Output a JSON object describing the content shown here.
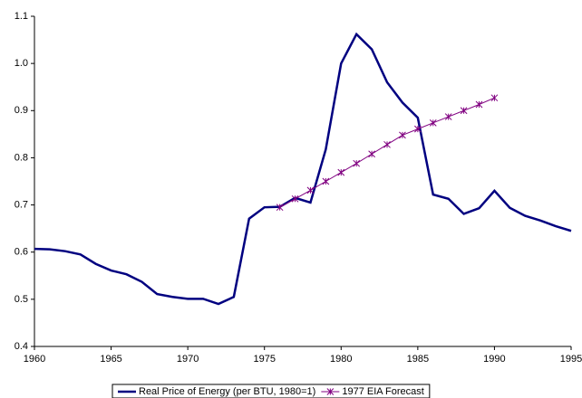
{
  "chart_data": {
    "type": "line",
    "x": [
      1960,
      1961,
      1962,
      1963,
      1964,
      1965,
      1966,
      1967,
      1968,
      1969,
      1970,
      1971,
      1972,
      1973,
      1974,
      1975,
      1976,
      1977,
      1978,
      1979,
      1980,
      1981,
      1982,
      1983,
      1984,
      1985,
      1986,
      1987,
      1988,
      1989,
      1990,
      1991,
      1992,
      1993,
      1994,
      1995
    ],
    "series": [
      {
        "name": "Real Price of Energy (per BTU, 1980=1)",
        "color": "#000080",
        "values": [
          0.607,
          0.606,
          0.602,
          0.595,
          0.575,
          0.561,
          0.553,
          0.537,
          0.511,
          0.505,
          0.501,
          0.501,
          0.49,
          0.505,
          0.671,
          0.695,
          0.696,
          0.715,
          0.705,
          0.818,
          1.0,
          1.062,
          1.03,
          0.96,
          0.917,
          0.885,
          0.722,
          0.713,
          0.681,
          0.693,
          0.73,
          0.694,
          0.677,
          0.667,
          0.655,
          0.645
        ]
      },
      {
        "name": "1977 EIA Forecast",
        "color": "#800080",
        "marker": "asterisk",
        "values": [
          null,
          null,
          null,
          null,
          null,
          null,
          null,
          null,
          null,
          null,
          null,
          null,
          null,
          null,
          null,
          null,
          0.695,
          0.713,
          0.731,
          0.75,
          0.769,
          0.788,
          0.808,
          0.828,
          0.848,
          0.861,
          0.874,
          0.887,
          0.9,
          0.913,
          0.927,
          null,
          null,
          null,
          null,
          null
        ]
      }
    ],
    "xlim": [
      1960,
      1995
    ],
    "xticks": [
      1960,
      1965,
      1970,
      1975,
      1980,
      1985,
      1990,
      1995
    ],
    "ylim": [
      0.4,
      1.1
    ],
    "yticks": [
      0.4,
      0.5,
      0.6,
      0.7,
      0.8,
      0.9,
      {
        "value": 1,
        "label": "1.0"
      },
      1.1
    ],
    "grid": false,
    "legend": "bottom"
  }
}
